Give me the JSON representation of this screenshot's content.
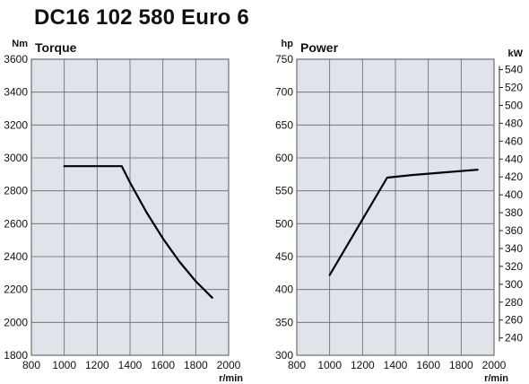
{
  "page": {
    "title": "DC16 102 580 Euro 6"
  },
  "chart_data": [
    {
      "type": "line",
      "title": "Torque",
      "ylabel": "Nm",
      "xlabel": "r/min",
      "xlim": [
        800,
        2000
      ],
      "ylim": [
        1800,
        3600
      ],
      "x_ticks": [
        800,
        1000,
        1200,
        1400,
        1600,
        1800,
        2000
      ],
      "y_ticks": [
        1800,
        2000,
        2200,
        2400,
        2600,
        2800,
        3000,
        3200,
        3400,
        3600
      ],
      "grid": true,
      "plot_bg": "#dfe3ea",
      "line_color": "#000000",
      "series": [
        {
          "x": [
            1000,
            1100,
            1200,
            1350,
            1400,
            1450,
            1500,
            1600,
            1700,
            1800,
            1900
          ],
          "y": [
            2950,
            2950,
            2950,
            2950,
            2850,
            2760,
            2670,
            2510,
            2370,
            2250,
            2150
          ]
        }
      ]
    },
    {
      "type": "line",
      "title": "Power",
      "ylabel": "hp",
      "y2label": "kW",
      "xlabel": "r/min",
      "xlim": [
        800,
        2000
      ],
      "ylim": [
        300,
        750
      ],
      "y2lim": [
        220.6,
        551.6
      ],
      "x_ticks": [
        800,
        1000,
        1200,
        1400,
        1600,
        1800,
        2000
      ],
      "y_ticks": [
        300,
        350,
        400,
        450,
        500,
        550,
        600,
        650,
        700,
        750
      ],
      "y2_ticks": [
        240,
        260,
        280,
        300,
        320,
        340,
        360,
        380,
        400,
        420,
        440,
        460,
        480,
        500,
        520,
        540
      ],
      "grid": true,
      "plot_bg": "#dfe3ea",
      "line_color": "#000000",
      "series": [
        {
          "x": [
            1000,
            1350,
            1500,
            1700,
            1900
          ],
          "y": [
            422,
            570,
            574,
            578,
            582
          ]
        }
      ]
    }
  ]
}
